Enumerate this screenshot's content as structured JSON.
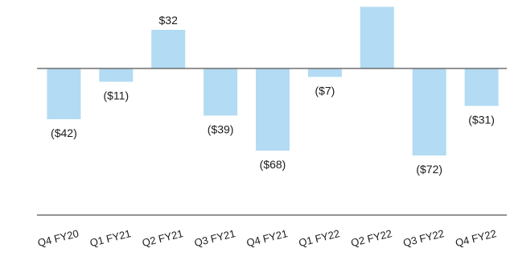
{
  "chart_data": {
    "type": "bar",
    "categories": [
      "Q4 FY20",
      "Q1 FY21",
      "Q2 FY21",
      "Q3 FY21",
      "Q4 FY21",
      "Q1 FY22",
      "Q2 FY22",
      "Q3 FY22",
      "Q4 FY22"
    ],
    "values": [
      -42,
      -11,
      32,
      -39,
      -68,
      -7,
      51,
      -72,
      -31
    ],
    "value_labels": [
      "($42)",
      "($11)",
      "$32",
      "($39)",
      "($68)",
      "($7)",
      "",
      "($72)",
      "($31)"
    ],
    "title": "",
    "xlabel": "",
    "ylabel": "",
    "ylim": [
      -118,
      56
    ],
    "grid": false,
    "legend": "none",
    "bar_color": "#b3dbf3",
    "zero_line_color": "#555555",
    "axis_line_color": "#555555"
  }
}
